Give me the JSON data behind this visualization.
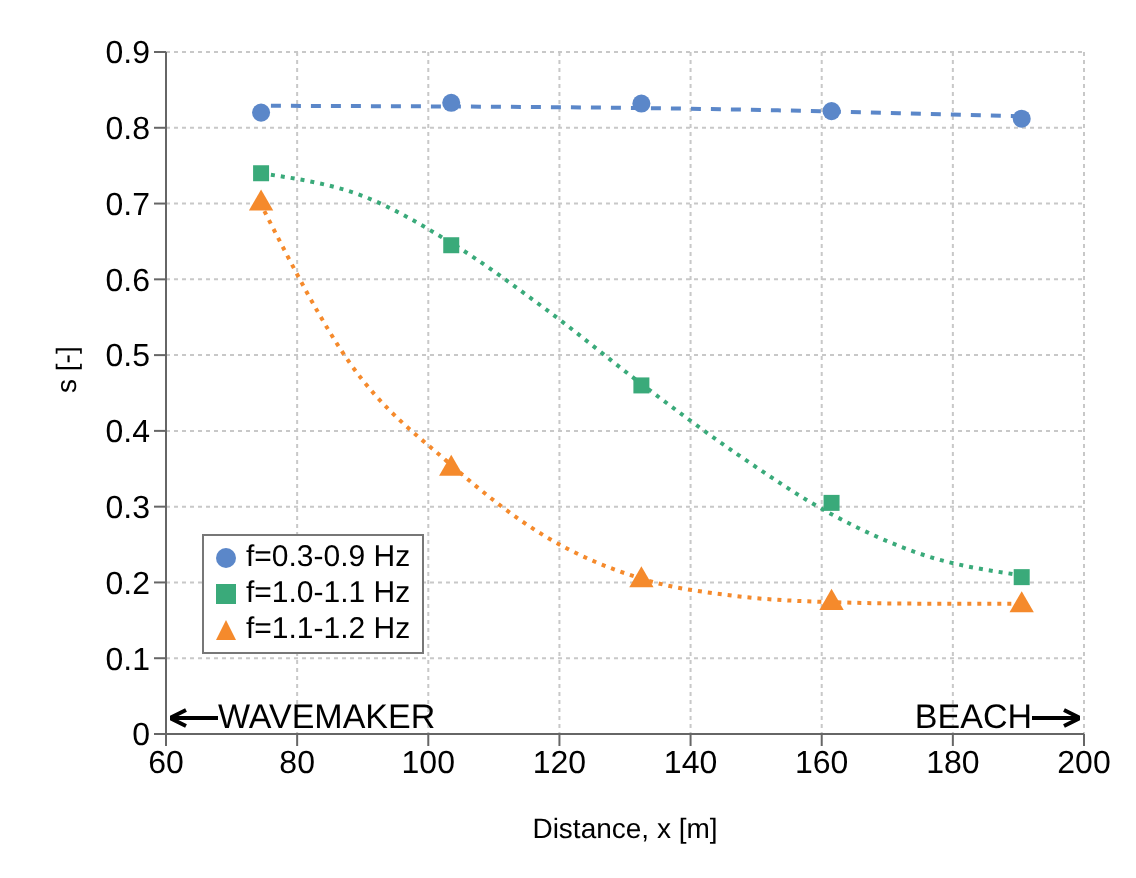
{
  "chart_data": {
    "type": "scatter",
    "xlabel": "Distance, x [m]",
    "ylabel": "s [-]",
    "xlim": [
      60,
      200
    ],
    "xticks": [
      60,
      80,
      100,
      120,
      140,
      160,
      180,
      200
    ],
    "ylim": [
      0,
      0.9
    ],
    "yticks": [
      0,
      0.1,
      0.2,
      0.3,
      0.4,
      0.5,
      0.6,
      0.7,
      0.8,
      0.9
    ],
    "grid": true,
    "legend": "bottom left",
    "annotations": [
      "WAVEMAKER",
      "BEACH"
    ],
    "series": [
      {
        "name": "f=0.3-0.9 Hz",
        "marker": "circle",
        "color": "#5b87c9",
        "x": [
          74.5,
          103.5,
          132.5,
          161.5,
          190.5
        ],
        "values": [
          0.82,
          0.833,
          0.832,
          0.822,
          0.812
        ]
      },
      {
        "name": "f=1.0-1.1 Hz",
        "marker": "square",
        "color": "#3aaa7a",
        "x": [
          74.5,
          103.5,
          132.5,
          161.5,
          190.5
        ],
        "values": [
          0.74,
          0.645,
          0.46,
          0.305,
          0.207
        ]
      },
      {
        "name": "f=1.1-1.2 Hz",
        "marker": "triangle",
        "color": "#f58a2c",
        "x": [
          74.5,
          103.5,
          132.5,
          161.5,
          190.5
        ],
        "values": [
          0.7,
          0.35,
          0.203,
          0.173,
          0.17
        ]
      },
      {
        "type": "line",
        "marker": "none",
        "line_style": "dashed",
        "color": "#5b87c9",
        "x": [
          76,
          133,
          190.5
        ],
        "values": [
          0.829,
          0.826,
          0.815
        ]
      },
      {
        "type": "line",
        "marker": "none",
        "line_style": "dotted",
        "color": "#3aaa7a",
        "x": [
          76,
          90,
          103.5,
          118,
          132.5,
          147,
          161.5,
          176,
          190
        ],
        "values": [
          0.738,
          0.71,
          0.648,
          0.56,
          0.462,
          0.37,
          0.29,
          0.235,
          0.21
        ]
      },
      {
        "type": "line",
        "marker": "none",
        "line_style": "dotted",
        "color": "#f58a2c",
        "x": [
          75,
          88,
          103.5,
          118,
          132.5,
          147,
          161.5,
          176,
          190
        ],
        "values": [
          0.69,
          0.49,
          0.355,
          0.26,
          0.205,
          0.182,
          0.174,
          0.172,
          0.172
        ]
      }
    ]
  }
}
